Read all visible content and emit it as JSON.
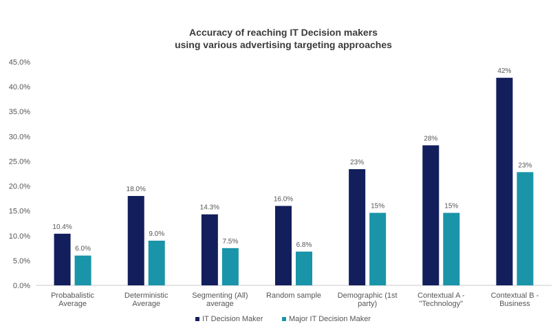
{
  "chart_data": {
    "type": "bar",
    "title_lines": [
      "Accuracy of reaching IT Decision makers",
      "using various advertising targeting approaches"
    ],
    "categories": [
      [
        "Probabalistic",
        "Average"
      ],
      [
        "Deterministic",
        "Average"
      ],
      [
        "Segmenting (All)",
        "average"
      ],
      [
        "Random sample"
      ],
      [
        "Demographic (1st",
        "party)"
      ],
      [
        "Contextual A -",
        "\"Technology\""
      ],
      [
        "Contextual B -",
        "Business"
      ]
    ],
    "series": [
      {
        "name": "IT Decision Maker",
        "color": "#131f5c",
        "values": [
          10.4,
          18.0,
          14.3,
          16.0,
          23.4,
          28.2,
          41.8
        ],
        "labels": [
          "10.4%",
          "18.0%",
          "14.3%",
          "16.0%",
          "23%",
          "28%",
          "42%"
        ]
      },
      {
        "name": "Major IT Decision Maker",
        "color": "#1a94a8",
        "values": [
          6.0,
          9.0,
          7.5,
          6.8,
          14.6,
          14.6,
          22.8
        ],
        "labels": [
          "6.0%",
          "9.0%",
          "7.5%",
          "6.8%",
          "15%",
          "15%",
          "23%"
        ]
      }
    ],
    "ylim": [
      0,
      45
    ],
    "yticks": [
      "0.0%",
      "5.0%",
      "10.0%",
      "15.0%",
      "20.0%",
      "25.0%",
      "30.0%",
      "35.0%",
      "40.0%",
      "45.0%"
    ],
    "ytick_values": [
      0,
      5,
      10,
      15,
      20,
      25,
      30,
      35,
      40,
      45
    ],
    "grid": false,
    "legend_position": "bottom"
  }
}
